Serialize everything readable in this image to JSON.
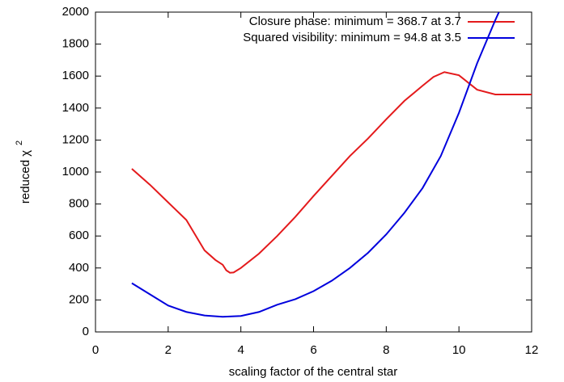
{
  "chart_data": {
    "type": "line",
    "xlabel": "scaling factor of the central star",
    "ylabel": "reduced χ",
    "ylabel_superscript": "2",
    "xlim": [
      0,
      12
    ],
    "xticks": [
      0,
      2,
      4,
      6,
      8,
      10,
      12
    ],
    "ylim": [
      0,
      2000
    ],
    "yticks": [
      0,
      200,
      400,
      600,
      800,
      1000,
      1200,
      1400,
      1600,
      1800,
      2000
    ],
    "legend": "top-right",
    "series": [
      {
        "name": "Closure phase: minimum = 368.7 at 3.7",
        "color": "#e41a1c",
        "x": [
          1,
          1.5,
          2,
          2.5,
          3,
          3.3,
          3.5,
          3.6,
          3.7,
          3.8,
          4,
          4.5,
          5,
          5.5,
          6,
          6.5,
          7,
          7.5,
          8,
          8.5,
          9,
          9.3,
          9.6,
          10,
          10.5,
          11,
          12
        ],
        "values": [
          1020,
          920,
          810,
          700,
          510,
          450,
          420,
          385,
          370,
          372,
          400,
          490,
          600,
          720,
          850,
          975,
          1100,
          1210,
          1330,
          1445,
          1540,
          1595,
          1625,
          1605,
          1515,
          1485,
          1485
        ]
      },
      {
        "name": "Squared visibility: minimum = 94.8 at 3.5",
        "color": "#0000dd",
        "x": [
          1,
          1.5,
          2,
          2.5,
          3,
          3.5,
          4,
          4.5,
          5,
          5.5,
          6,
          6.5,
          7,
          7.5,
          8,
          8.5,
          9,
          9.5,
          10,
          10.5,
          11,
          11.1
        ],
        "values": [
          305,
          235,
          165,
          125,
          103,
          95,
          100,
          125,
          170,
          205,
          255,
          320,
          400,
          495,
          610,
          745,
          900,
          1100,
          1370,
          1680,
          1950,
          2000
        ]
      }
    ]
  }
}
